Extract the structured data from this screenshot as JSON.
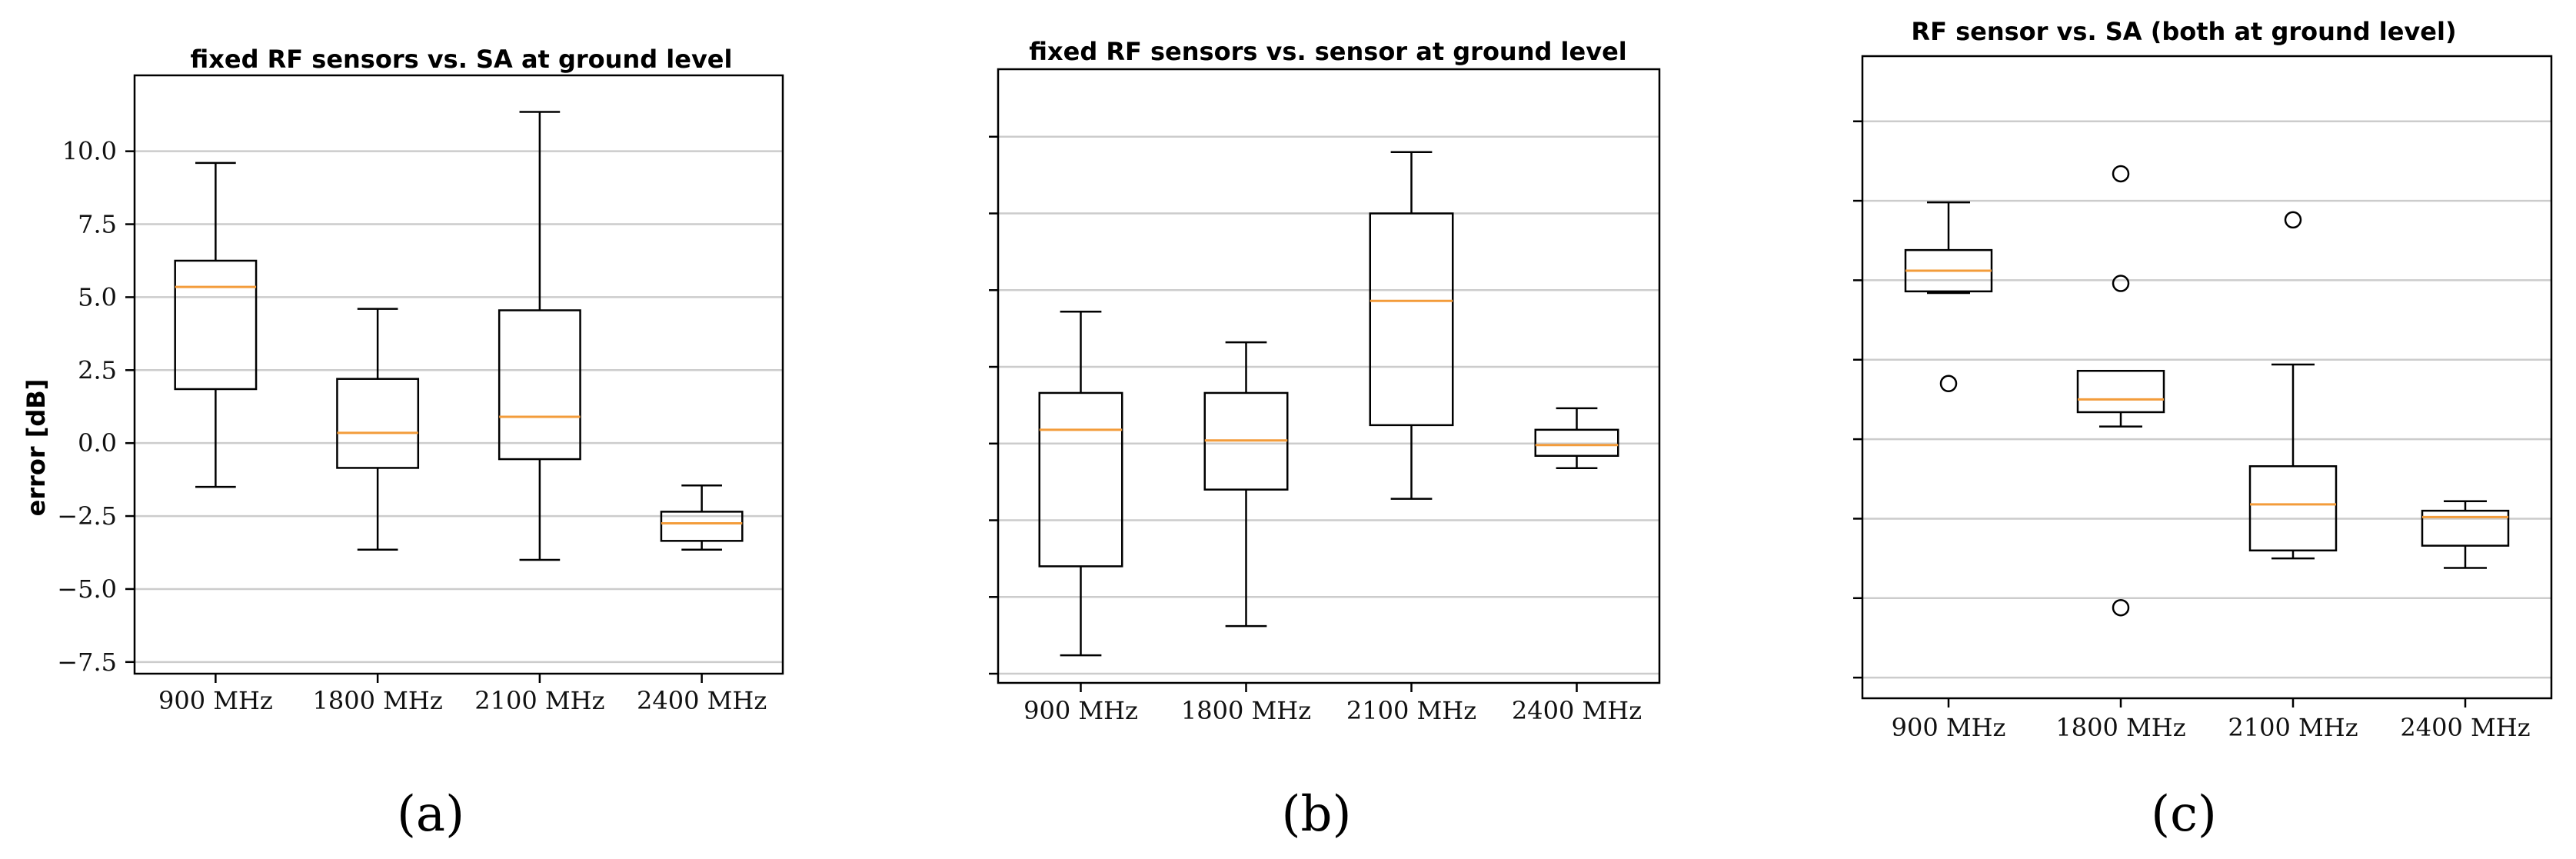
{
  "chart_data": [
    {
      "type": "box",
      "panel_label": "(a)",
      "title": "fixed RF sensors vs. SA at ground level",
      "xlabel": "",
      "ylabel": "error [dB]",
      "ylim": [
        -7.9,
        12.6
      ],
      "yticks": [
        -7.5,
        -5.0,
        -2.5,
        0.0,
        2.5,
        5.0,
        7.5,
        10.0
      ],
      "ytick_labels": [
        "−7.5",
        "−5.0",
        "−2.5",
        "0.0",
        "2.5",
        "5.0",
        "7.5",
        "10.0"
      ],
      "grid": true,
      "categories": [
        "900 MHz",
        "1800 MHz",
        "2100 MHz",
        "2400 MHz"
      ],
      "boxes": [
        {
          "whislo": -1.5,
          "q1": 1.85,
          "med": 5.35,
          "q3": 6.25,
          "whishi": 9.6,
          "fliers": []
        },
        {
          "whislo": -3.65,
          "q1": -0.85,
          "med": 0.35,
          "q3": 2.2,
          "whishi": 4.6,
          "fliers": []
        },
        {
          "whislo": -4.0,
          "q1": -0.55,
          "med": 0.9,
          "q3": 4.55,
          "whishi": 11.35,
          "fliers": []
        },
        {
          "whislo": -3.65,
          "q1": -3.35,
          "med": -2.75,
          "q3": -2.35,
          "whishi": -1.45,
          "fliers": []
        }
      ]
    },
    {
      "type": "box",
      "panel_label": "(b)",
      "title": "fixed RF sensors vs. sensor at ground level",
      "xlabel": "",
      "ylabel": "",
      "ylim": [
        -7.8,
        12.2
      ],
      "yticks": [
        -7.5,
        -5.0,
        -2.5,
        0.0,
        2.5,
        5.0,
        7.5,
        10.0
      ],
      "ytick_labels": [],
      "grid": true,
      "categories": [
        "900 MHz",
        "1800 MHz",
        "2100 MHz",
        "2400 MHz"
      ],
      "boxes": [
        {
          "whislo": -6.9,
          "q1": -4.0,
          "med": 0.45,
          "q3": 1.65,
          "whishi": 4.3,
          "fliers": []
        },
        {
          "whislo": -5.95,
          "q1": -1.5,
          "med": 0.1,
          "q3": 1.65,
          "whishi": 3.3,
          "fliers": []
        },
        {
          "whislo": -1.8,
          "q1": 0.6,
          "med": 4.65,
          "q3": 7.5,
          "whishi": 9.5,
          "fliers": []
        },
        {
          "whislo": -0.8,
          "q1": -0.4,
          "med": -0.05,
          "q3": 0.45,
          "whishi": 1.15,
          "fliers": []
        }
      ]
    },
    {
      "type": "box",
      "panel_label": "(c)",
      "title": "RF sensor vs. SA (both at ground level)",
      "xlabel": "",
      "ylabel": "",
      "ylim": [
        -8.15,
        12.05
      ],
      "yticks": [
        -7.5,
        -5.0,
        -2.5,
        0.0,
        2.5,
        5.0,
        7.5,
        10.0
      ],
      "ytick_labels": [],
      "grid": true,
      "categories": [
        "900 MHz",
        "1800 MHz",
        "2100 MHz",
        "2400 MHz"
      ],
      "boxes": [
        {
          "whislo": 4.6,
          "q1": 4.65,
          "med": 5.3,
          "q3": 5.95,
          "whishi": 7.45,
          "fliers": [
            1.75
          ]
        },
        {
          "whislo": 0.4,
          "q1": 0.85,
          "med": 1.25,
          "q3": 2.15,
          "whishi": 2.15,
          "fliers": [
            8.35,
            4.9,
            -5.3
          ]
        },
        {
          "whislo": -3.75,
          "q1": -3.5,
          "med": -2.05,
          "q3": -0.85,
          "whishi": 2.35,
          "fliers": [
            6.9
          ]
        },
        {
          "whislo": -4.05,
          "q1": -3.35,
          "med": -2.45,
          "q3": -2.25,
          "whishi": -1.95,
          "fliers": []
        }
      ]
    }
  ]
}
